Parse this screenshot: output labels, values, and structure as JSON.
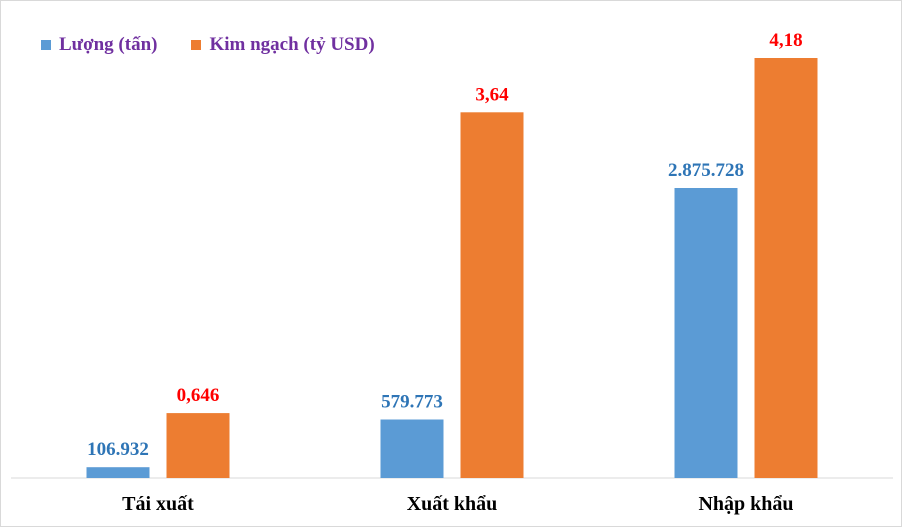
{
  "chart_data": {
    "type": "bar",
    "categories": [
      "Tái xuất",
      "Xuất khẩu",
      "Nhập khẩu"
    ],
    "series": [
      {
        "name": "Lượng (tấn)",
        "color": "#5b9bd5",
        "label_color": "#2e75b6",
        "values": [
          106932,
          579773,
          2875728
        ],
        "labels": [
          "106.932",
          "579.773",
          "2.875.728"
        ]
      },
      {
        "name": "Kim ngạch (tỷ USD)",
        "color": "#ed7d31",
        "label_color": "#ff0000",
        "values": [
          0.646,
          3.64,
          4.18
        ],
        "labels": [
          "0,646",
          "3,64",
          "4,18"
        ]
      }
    ],
    "legend_position": "top-left",
    "grid": false,
    "axis_line_color": "#d9d9d9",
    "category_label_color": "#000000",
    "legend_text_color": "#7030a0"
  }
}
